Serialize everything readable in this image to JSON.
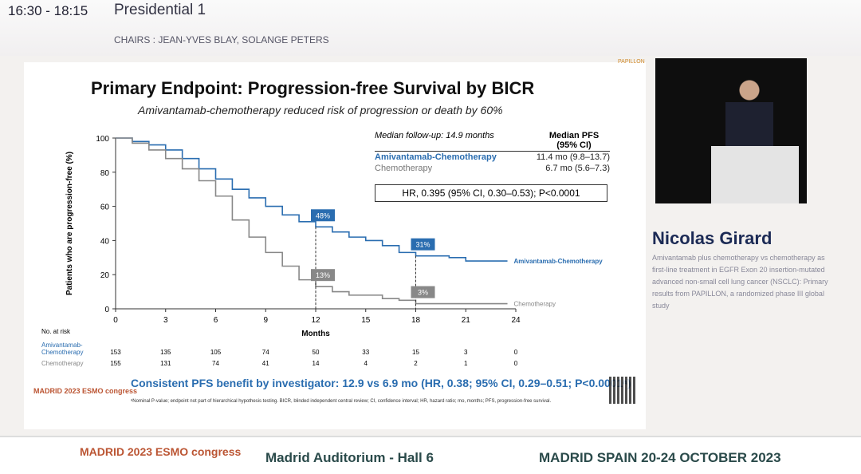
{
  "header": {
    "time": "16:30 - 18:15",
    "session": "Presidential 1",
    "chairs": "CHAIRS : JEAN-YVES BLAY, SOLANGE PETERS"
  },
  "slide": {
    "title": "Primary Endpoint: Progression-free Survival by BICR",
    "subtitle": "Amivantamab-chemotherapy reduced risk of progression or death by 60%",
    "logo": "PAPILLON",
    "followup": "Median follow-up: 14.9 months",
    "median_header": "Median PFS (95% CI)",
    "rows": [
      {
        "name": "Amivantamab-Chemotherapy",
        "value": "11.4 mo (9.8–13.7)"
      },
      {
        "name": "Chemotherapy",
        "value": "6.7 mo (5.6–7.3)"
      }
    ],
    "hr": "HR, 0.395 (95% CI, 0.30–0.53); P<0.0001",
    "risk_label": "No. at risk",
    "risk_rows": [
      {
        "name": "Amivantamab-Chemotherapy",
        "values": [
          "153",
          "135",
          "105",
          "74",
          "50",
          "33",
          "15",
          "3",
          "0"
        ]
      },
      {
        "name": "Chemotherapy",
        "values": [
          "155",
          "131",
          "74",
          "41",
          "14",
          "4",
          "2",
          "1",
          "0"
        ]
      }
    ],
    "consistent": "Consistent PFS benefit by investigator: 12.9 vs 6.9 mo (HR, 0.38; 95% CI, 0.29–0.51; P<0.0001ᵃ)",
    "footnote": "ᵃNominal P-value; endpoint not part of hierarchical hypothesis testing. BICR, blinded independent central review; CI, confidence interval; HR, hazard ratio; mo, months; PFS, progression-free survival.",
    "esmo_logo": "MADRID 2023 ESMO congress"
  },
  "chart_data": {
    "type": "line",
    "xlabel": "Months",
    "ylabel": "Patients who are progression-free (%)",
    "xlim": [
      0,
      24
    ],
    "ylim": [
      0,
      100
    ],
    "xticks": [
      "0",
      "3",
      "6",
      "9",
      "12",
      "15",
      "18",
      "21",
      "24"
    ],
    "yticks": [
      "0",
      "20",
      "40",
      "60",
      "80",
      "100"
    ],
    "series": [
      {
        "name": "Amivantamab-Chemotherapy",
        "color": "#2a6db0",
        "x": [
          0,
          1,
          2,
          3,
          4,
          5,
          6,
          7,
          8,
          9,
          10,
          11,
          12,
          13,
          14,
          15,
          16,
          17,
          18,
          19,
          20,
          21,
          22,
          23.5
        ],
        "y": [
          100,
          98,
          96,
          93,
          88,
          82,
          76,
          70,
          65,
          60,
          55,
          51,
          48,
          45,
          42,
          40,
          37,
          33,
          31,
          31,
          30,
          28,
          28,
          28
        ]
      },
      {
        "name": "Chemotherapy",
        "color": "#888888",
        "x": [
          0,
          1,
          2,
          3,
          4,
          5,
          6,
          7,
          8,
          9,
          10,
          11,
          12,
          13,
          14,
          15,
          16,
          17,
          18,
          19,
          20,
          21,
          22,
          23.5
        ],
        "y": [
          100,
          97,
          93,
          88,
          82,
          75,
          66,
          52,
          42,
          33,
          25,
          17,
          13,
          10,
          8,
          8,
          6,
          5,
          3,
          3,
          3,
          3,
          3,
          3
        ]
      }
    ],
    "annotations": [
      {
        "text": "48%",
        "x": 12,
        "y": 48,
        "color": "#2a6db0"
      },
      {
        "text": "31%",
        "x": 18,
        "y": 31,
        "color": "#2a6db0"
      },
      {
        "text": "13%",
        "x": 12,
        "y": 13,
        "color": "#888888"
      },
      {
        "text": "3%",
        "x": 18,
        "y": 3,
        "color": "#888888"
      }
    ]
  },
  "speaker": {
    "name": "Nicolas Girard",
    "talk": "Amivantamab plus chemotherapy vs chemotherapy as first-line treatment in EGFR Exon 20 insertion-mutated advanced non-small cell lung cancer (NSCLC): Primary results from PAPILLON, a randomized phase III global study"
  },
  "footer": {
    "logo": "MADRID 2023 ESMO congress",
    "hall": "Madrid Auditorium - Hall 6",
    "dates": "MADRID SPAIN  20-24 OCTOBER 2023"
  }
}
